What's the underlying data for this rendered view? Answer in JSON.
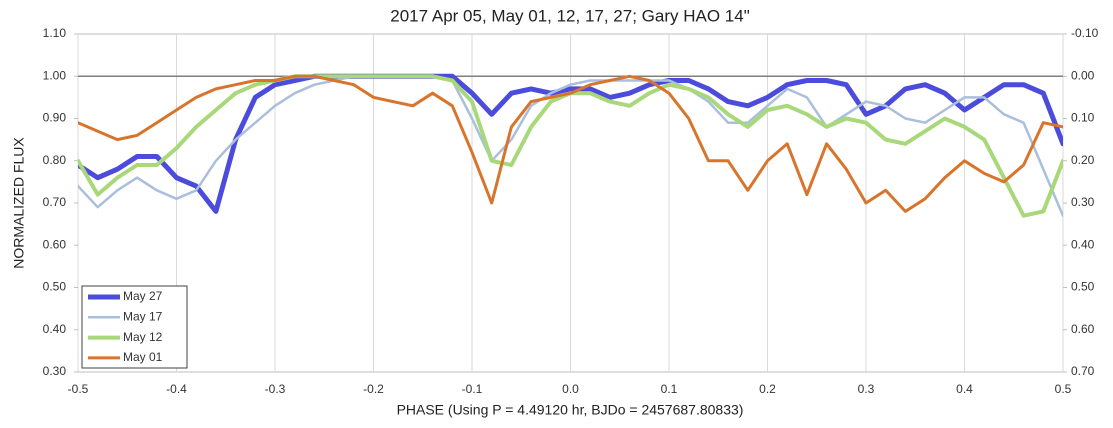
{
  "chart_data": {
    "type": "line",
    "title": "2017 Apr 05, May 01, 12, 17, 27; Gary HAO 14\"",
    "x_label": "PHASE (Using P = 4.49120 hr, BJDo = 2457687.80833)",
    "y_label": "NORMALIZED FLUX",
    "xlim": [
      -0.5,
      0.5
    ],
    "xticks": [
      -0.5,
      -0.4,
      -0.3,
      -0.2,
      -0.1,
      {
        "value": 0,
        "label": "0.0"
      },
      0.1,
      0.2,
      0.3,
      0.4,
      0.5
    ],
    "ylim": [
      0.3,
      1.1
    ],
    "yticks": [
      {
        "value": 0.3,
        "label": "0.30"
      },
      {
        "value": 0.4,
        "label": "0.40"
      },
      {
        "value": 0.5,
        "label": "0.50"
      },
      {
        "value": 0.6,
        "label": "0.60"
      },
      {
        "value": 0.7,
        "label": "0.70"
      },
      {
        "value": 0.8,
        "label": "0.80"
      },
      {
        "value": 0.9,
        "label": "0.90"
      },
      {
        "value": 1.0,
        "label": "1.00"
      },
      {
        "value": 1.1,
        "label": "1.10"
      }
    ],
    "y2lim": [
      0.7,
      -0.1
    ],
    "y2ticks": [
      {
        "value": 0.7,
        "label": "0.70"
      },
      {
        "value": 0.6,
        "label": "0.60"
      },
      {
        "value": 0.5,
        "label": "0.50"
      },
      {
        "value": 0.4,
        "label": "0.40"
      },
      {
        "value": 0.3,
        "label": "0.30"
      },
      {
        "value": 0.2,
        "label": "0.20"
      },
      {
        "value": 0.1,
        "label": "0.10"
      },
      {
        "value": 0,
        "label": "0.00"
      },
      {
        "value": -0.1,
        "label": "-0.10"
      }
    ],
    "reference_line": 1.0,
    "grid": "x",
    "legend": "lower left",
    "x": [
      -0.5,
      -0.48,
      -0.46,
      -0.44,
      -0.42,
      -0.4,
      -0.38,
      -0.36,
      -0.34,
      -0.32,
      -0.3,
      -0.28,
      -0.26,
      -0.24,
      -0.22,
      -0.2,
      -0.18,
      -0.16,
      -0.14,
      -0.12,
      -0.1,
      -0.08,
      -0.06,
      -0.04,
      -0.02,
      0,
      0.02,
      0.04,
      0.06,
      0.08,
      0.1,
      0.12,
      0.14,
      0.16,
      0.18,
      0.2,
      0.22,
      0.24,
      0.26,
      0.28,
      0.3,
      0.32,
      0.34,
      0.36,
      0.38,
      0.4,
      0.42,
      0.44,
      0.46,
      0.48,
      0.5
    ],
    "series": [
      {
        "name": "May 27",
        "color": "#4b4bdc",
        "values": [
          0.79,
          0.76,
          0.78,
          0.81,
          0.81,
          0.76,
          0.74,
          0.68,
          0.85,
          0.95,
          0.98,
          0.99,
          1.0,
          1.0,
          1.0,
          1.0,
          1.0,
          1.0,
          1.0,
          1.0,
          0.96,
          0.91,
          0.96,
          0.97,
          0.96,
          0.97,
          0.97,
          0.95,
          0.96,
          0.98,
          0.99,
          0.99,
          0.97,
          0.94,
          0.93,
          0.95,
          0.98,
          0.99,
          0.99,
          0.98,
          0.91,
          0.93,
          0.97,
          0.98,
          0.96,
          0.92,
          0.95,
          0.98,
          0.98,
          0.96,
          0.84
        ]
      },
      {
        "name": "May 17",
        "color": "#a9bfdb",
        "values": [
          0.74,
          0.69,
          0.73,
          0.76,
          0.73,
          0.71,
          0.73,
          0.8,
          0.85,
          0.89,
          0.93,
          0.96,
          0.98,
          0.99,
          1.0,
          1.0,
          1.0,
          1.0,
          1.0,
          0.99,
          0.9,
          0.8,
          0.85,
          0.93,
          0.96,
          0.98,
          0.99,
          0.99,
          0.99,
          0.99,
          0.99,
          0.97,
          0.94,
          0.89,
          0.89,
          0.93,
          0.97,
          0.95,
          0.88,
          0.91,
          0.94,
          0.93,
          0.9,
          0.89,
          0.92,
          0.95,
          0.95,
          0.91,
          0.89,
          0.78,
          0.67
        ]
      },
      {
        "name": "May 12",
        "color": "#a9d87a",
        "values": [
          0.8,
          0.72,
          0.76,
          0.79,
          0.79,
          0.83,
          0.88,
          0.92,
          0.96,
          0.98,
          0.99,
          1.0,
          1.0,
          1.0,
          1.0,
          1.0,
          1.0,
          1.0,
          1.0,
          0.99,
          0.94,
          0.8,
          0.79,
          0.88,
          0.94,
          0.96,
          0.96,
          0.94,
          0.93,
          0.96,
          0.98,
          0.97,
          0.95,
          0.91,
          0.88,
          0.92,
          0.93,
          0.91,
          0.88,
          0.9,
          0.89,
          0.85,
          0.84,
          0.87,
          0.9,
          0.88,
          0.85,
          0.76,
          0.67,
          0.68,
          0.8
        ]
      },
      {
        "name": "May 01",
        "color": "#d8742c",
        "values": [
          0.89,
          0.87,
          0.85,
          0.86,
          0.89,
          0.92,
          0.95,
          0.97,
          0.98,
          0.99,
          0.99,
          1.0,
          1.0,
          0.99,
          0.98,
          0.95,
          0.94,
          0.93,
          0.96,
          0.93,
          0.82,
          0.7,
          0.88,
          0.94,
          0.95,
          0.96,
          0.98,
          0.99,
          1.0,
          0.99,
          0.96,
          0.9,
          0.8,
          0.8,
          0.73,
          0.8,
          0.84,
          0.72,
          0.84,
          0.78,
          0.7,
          0.73,
          0.68,
          0.71,
          0.76,
          0.8,
          0.77,
          0.75,
          0.79,
          0.89,
          0.88
        ]
      }
    ]
  }
}
